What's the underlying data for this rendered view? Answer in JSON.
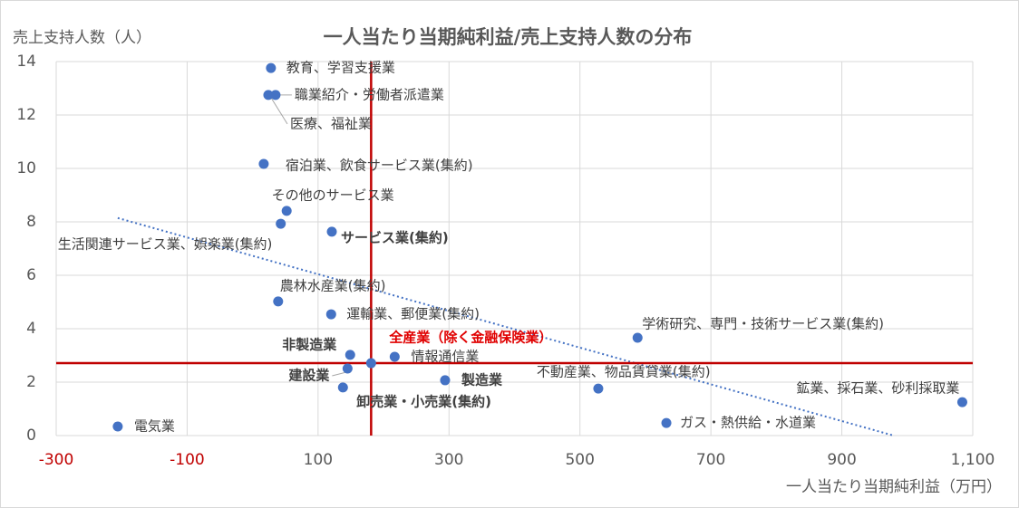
{
  "chart_data": {
    "type": "scatter",
    "title": "一人当たり当期純利益/売上支持人数の分布",
    "x_label": "一人当たり当期純利益（万円）",
    "y_label": "売上支持人数（人）",
    "color": "#4472c4",
    "negative_tick_color": "#c00000",
    "grid": true,
    "trendline": true,
    "reference_point": 11,
    "reference_color": "#c00000",
    "xlim": [
      -300,
      1100
    ],
    "xticks": [
      -300,
      -100,
      100,
      300,
      500,
      700,
      900,
      {
        "value": 1100,
        "label": "1,100"
      }
    ],
    "ylim": [
      0,
      14
    ],
    "yticks": [
      0,
      2,
      4,
      6,
      8,
      10,
      12,
      14
    ],
    "points": [
      {
        "label": "教育、学習支援業",
        "x": 28,
        "y": 13.76
      },
      {
        "label": "職業紹介・労働者派遣業",
        "x": 35,
        "y": 12.75
      },
      {
        "label": "医療、福祉業",
        "x": 24,
        "y": 12.75
      },
      {
        "label": "宿泊業、飲食サービス業(集約)",
        "x": 17,
        "y": 10.17
      },
      {
        "label": "その他のサービス業",
        "x": 52,
        "y": 8.41
      },
      {
        "label": "生活関連サービス業、娯楽業(集約)",
        "x": 43,
        "y": 7.93
      },
      {
        "label": "サービス業(集約)",
        "x": 121,
        "y": 7.63,
        "bold": true
      },
      {
        "label": "農林水産業(集約)",
        "x": 39,
        "y": 5.02
      },
      {
        "label": "運輸業、郵便業(集約)",
        "x": 120,
        "y": 4.54
      },
      {
        "label": "学術研究、専門・技術サービス業(集約)",
        "x": 588,
        "y": 3.66
      },
      {
        "label": "非製造業",
        "x": 149,
        "y": 3.02,
        "bold": true
      },
      {
        "label": "全産業（除く金融保険業）",
        "x": 181,
        "y": 2.71,
        "bold": true,
        "label_color": "#e00000"
      },
      {
        "label": "情報通信業",
        "x": 217,
        "y": 2.95
      },
      {
        "label": "建設業",
        "x": 145,
        "y": 2.51,
        "bold": true
      },
      {
        "label": "製造業",
        "x": 294,
        "y": 2.07,
        "bold": true
      },
      {
        "label": "不動産業、物品賃貸業(集約)",
        "x": 528,
        "y": 1.76
      },
      {
        "label": "卸売業・小売業(集約)",
        "x": 138,
        "y": 1.8,
        "bold": true
      },
      {
        "label": "鉱業、採石業、砂利採取業",
        "x": 1084,
        "y": 1.25
      },
      {
        "label": "ガス・熱供給・水道業",
        "x": 632,
        "y": 0.47
      },
      {
        "label": "電気業",
        "x": -206,
        "y": 0.34
      }
    ]
  }
}
